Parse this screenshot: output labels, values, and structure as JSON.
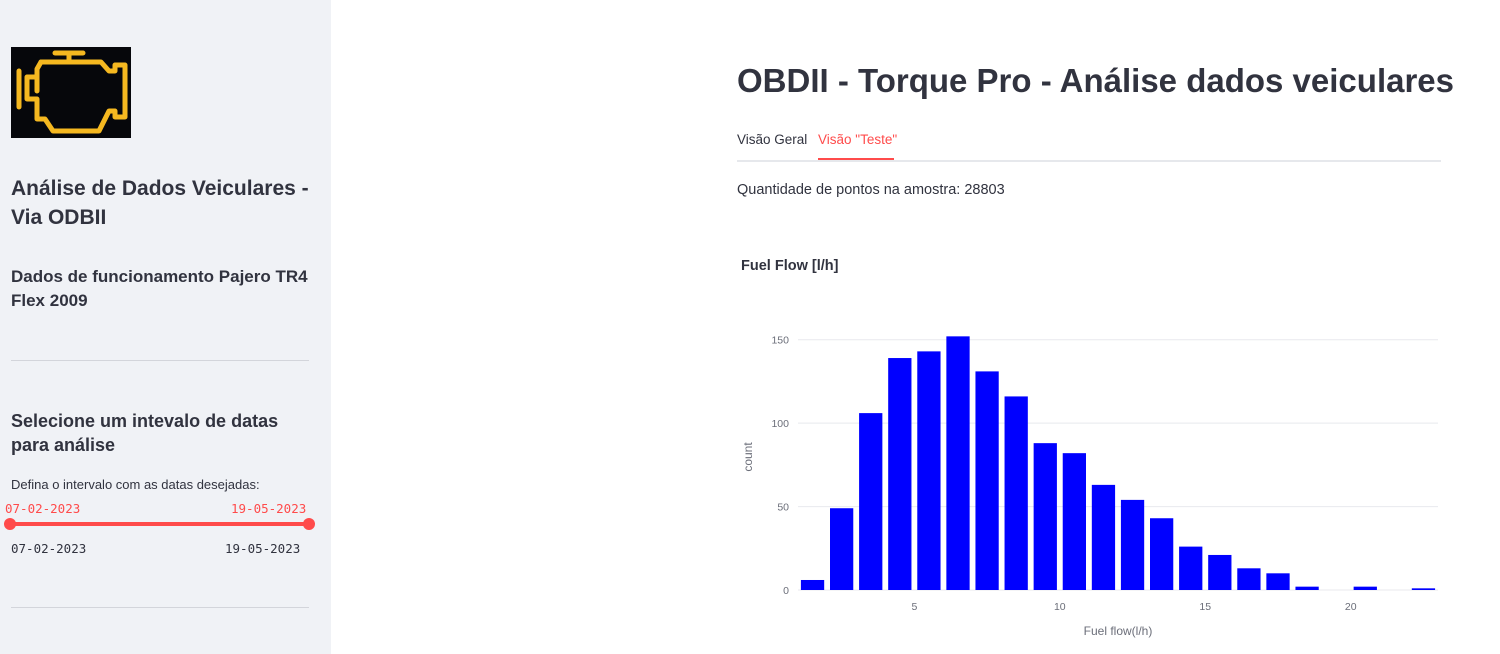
{
  "sidebar": {
    "logo_icon": "check-engine-icon",
    "title": "Análise de Dados Veiculares - Via ODBII",
    "subtitle": "Dados de funcionamento Pajero TR4 Flex 2009",
    "date_section_title": "Selecione um intevalo de datas para análise",
    "slider": {
      "label": "Defina o intervalo com as datas desejadas:",
      "value_start": "07-02-2023",
      "value_end": "19-05-2023",
      "min": "07-02-2023",
      "max": "19-05-2023",
      "accent_color": "#ff4b4b"
    }
  },
  "main": {
    "title": "OBDII - Torque Pro - Análise dados veiculares",
    "tabs": [
      {
        "label": "Visão Geral",
        "active": false
      },
      {
        "label": "Visão \"Teste\"",
        "active": true
      }
    ],
    "points_text": "Quantidade de pontos na amostra: 28803"
  },
  "chart_data": {
    "type": "bar",
    "title": "Fuel Flow [l/h]",
    "xlabel": "Fuel flow(l/h)",
    "ylabel": "count",
    "bin_width": 1,
    "x": [
      1.5,
      2.5,
      3.5,
      4.5,
      5.5,
      6.5,
      7.5,
      8.5,
      9.5,
      10.5,
      11.5,
      12.5,
      13.5,
      14.5,
      15.5,
      16.5,
      17.5,
      18.5,
      19.5,
      20.5,
      21.5,
      22.5
    ],
    "values": [
      6,
      49,
      106,
      139,
      143,
      152,
      131,
      116,
      88,
      82,
      63,
      54,
      43,
      26,
      21,
      13,
      10,
      2,
      0,
      2,
      0,
      1
    ],
    "xlim": [
      1,
      23
    ],
    "ylim": [
      0,
      160
    ],
    "xticks": [
      5,
      10,
      15,
      20
    ],
    "yticks": [
      0,
      50,
      100,
      150
    ],
    "bar_color": "#0000ff",
    "grid": true
  }
}
